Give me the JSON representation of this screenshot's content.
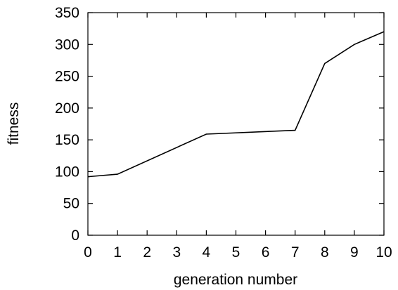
{
  "chart_data": {
    "type": "line",
    "title": "",
    "xlabel": "generation number",
    "ylabel": "fitness",
    "xlim": [
      0,
      10
    ],
    "ylim": [
      0,
      350
    ],
    "xticks": [
      0,
      1,
      2,
      3,
      4,
      5,
      6,
      7,
      8,
      9,
      10
    ],
    "yticks": [
      0,
      50,
      100,
      150,
      200,
      250,
      300,
      350
    ],
    "grid": false,
    "series": [
      {
        "x": [
          0,
          1,
          4,
          7,
          8,
          9,
          10
        ],
        "y": [
          92,
          96,
          159,
          165,
          270,
          300,
          320
        ]
      }
    ]
  }
}
